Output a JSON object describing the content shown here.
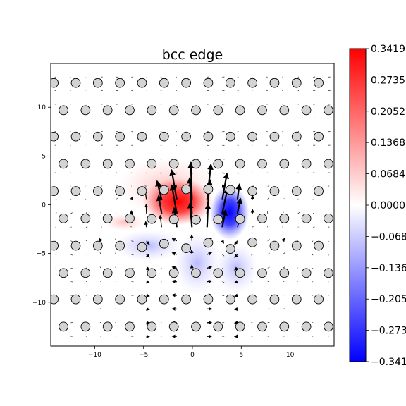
{
  "chart_data": {
    "type": "scatter",
    "title": "bcc edge",
    "xlabel": "",
    "ylabel": "",
    "xlim": [
      -14.5,
      14.5
    ],
    "ylim": [
      -14.5,
      14.5
    ],
    "x_ticks": [
      -10,
      -5,
      0,
      5,
      10
    ],
    "y_ticks": [
      10,
      5,
      0,
      -5,
      -10
    ],
    "x_tick_labels": [
      "−10",
      "−5",
      "0",
      "5",
      "10"
    ],
    "y_tick_labels": [
      "10",
      "5",
      "0",
      "−5",
      "−10"
    ],
    "grid": false,
    "atom_rows": [
      {
        "y": 12.5,
        "x_start": -14.2,
        "spacing": 2.26,
        "count": 14
      },
      {
        "y": 9.7,
        "x_start": -13.2,
        "spacing": 2.26,
        "count": 13
      },
      {
        "y": 7.0,
        "x_start": -14.2,
        "spacing": 2.26,
        "count": 14
      },
      {
        "y": 4.2,
        "x_start": -13.2,
        "spacing": 2.26,
        "count": 13
      },
      {
        "y": 1.4,
        "x_start": -14.2,
        "spacing": 2.26,
        "count": 14
      },
      {
        "y": -1.4,
        "x_start": -13.2,
        "spacing": 2.26,
        "count": 13
      },
      {
        "y": -4.2,
        "x_start": -14.2,
        "spacing": 2.26,
        "count": 14
      },
      {
        "y": -7.0,
        "x_start": -13.2,
        "spacing": 2.26,
        "count": 13
      },
      {
        "y": -9.7,
        "x_start": -14.2,
        "spacing": 2.26,
        "count": 14
      },
      {
        "y": -12.5,
        "x_start": -13.2,
        "spacing": 2.26,
        "count": 13
      }
    ],
    "strain_field": {
      "positive_lobe": {
        "x": -1.5,
        "y": 0.3,
        "value": 0.3419
      },
      "negative_lobe": {
        "x": 3.8,
        "y": -0.8,
        "value": -0.3419
      }
    },
    "colorbar": {
      "min": -0.3419,
      "max": 0.3419,
      "colors": [
        "#0000ff",
        "#ffffff",
        "#ff0000"
      ],
      "tick_values": [
        0.3419,
        0.2735,
        0.2052,
        0.1368,
        0.0684,
        0.0,
        -0.0684,
        -0.1368,
        -0.2052,
        -0.2735,
        -0.3419
      ],
      "tick_labels": [
        "0.3419",
        "0.2735",
        "0.2052",
        "0.1368",
        "0.0684",
        "0.0000",
        "−0.0684",
        "−0.1368",
        "−0.2052",
        "−0.2735",
        "−0.3419"
      ]
    }
  }
}
